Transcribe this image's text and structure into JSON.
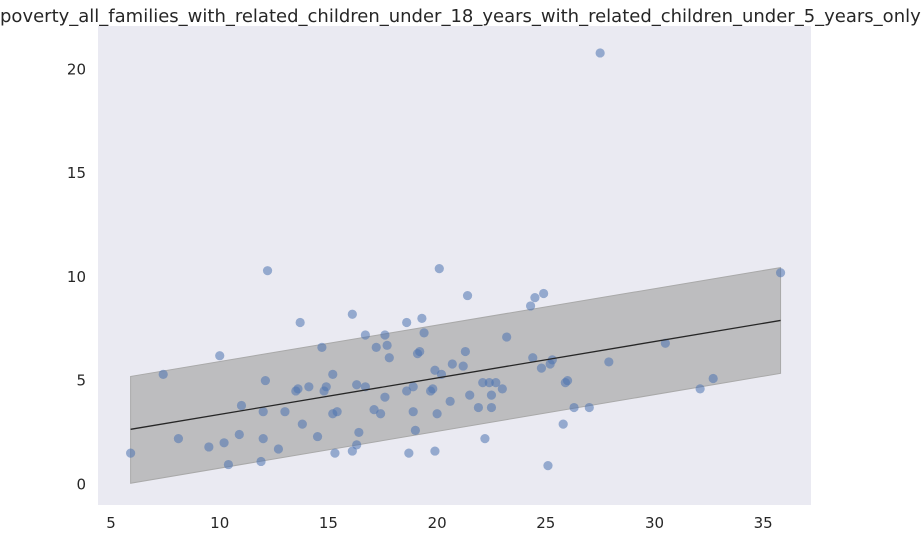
{
  "chart_data": {
    "type": "scatter",
    "title": "poverty_all_families_with_related_children_under_18_years_with_related_children_under_5_years_only",
    "xlabel": "",
    "ylabel": "",
    "xlim": [
      4.4,
      37.2
    ],
    "ylim": [
      -1.0,
      22.1
    ],
    "xticks": [
      5,
      10,
      15,
      20,
      25,
      30,
      35
    ],
    "yticks": [
      0,
      5,
      10,
      15,
      20
    ],
    "grid": false,
    "background": "#eaeaf2",
    "point_color": "#4c72b0",
    "band_color": "#a9a9a9",
    "line_color": "#262626",
    "regression": {
      "x": [
        5.9,
        35.8
      ],
      "y": [
        2.65,
        7.9
      ],
      "band_lower": [
        0.05,
        5.35
      ],
      "band_upper": [
        5.2,
        10.45
      ]
    },
    "points": [
      {
        "x": 5.9,
        "y": 1.5
      },
      {
        "x": 7.4,
        "y": 5.3
      },
      {
        "x": 8.1,
        "y": 2.2
      },
      {
        "x": 9.5,
        "y": 1.8
      },
      {
        "x": 10.0,
        "y": 6.2
      },
      {
        "x": 10.2,
        "y": 2.0
      },
      {
        "x": 10.4,
        "y": 0.95
      },
      {
        "x": 10.9,
        "y": 2.4
      },
      {
        "x": 11.0,
        "y": 3.8
      },
      {
        "x": 11.9,
        "y": 1.1
      },
      {
        "x": 12.0,
        "y": 2.2
      },
      {
        "x": 12.0,
        "y": 3.5
      },
      {
        "x": 12.1,
        "y": 5.0
      },
      {
        "x": 12.2,
        "y": 10.3
      },
      {
        "x": 12.7,
        "y": 1.7
      },
      {
        "x": 13.0,
        "y": 3.5
      },
      {
        "x": 13.5,
        "y": 4.5
      },
      {
        "x": 13.6,
        "y": 4.6
      },
      {
        "x": 13.7,
        "y": 7.8
      },
      {
        "x": 13.8,
        "y": 2.9
      },
      {
        "x": 14.1,
        "y": 4.7
      },
      {
        "x": 14.5,
        "y": 2.3
      },
      {
        "x": 14.7,
        "y": 6.6
      },
      {
        "x": 14.8,
        "y": 4.5
      },
      {
        "x": 14.9,
        "y": 4.7
      },
      {
        "x": 15.2,
        "y": 3.4
      },
      {
        "x": 15.2,
        "y": 5.3
      },
      {
        "x": 15.3,
        "y": 1.5
      },
      {
        "x": 15.4,
        "y": 3.5
      },
      {
        "x": 16.1,
        "y": 1.6
      },
      {
        "x": 16.1,
        "y": 8.2
      },
      {
        "x": 16.3,
        "y": 1.9
      },
      {
        "x": 16.3,
        "y": 4.8
      },
      {
        "x": 16.4,
        "y": 2.5
      },
      {
        "x": 16.7,
        "y": 4.7
      },
      {
        "x": 16.7,
        "y": 7.2
      },
      {
        "x": 17.1,
        "y": 3.6
      },
      {
        "x": 17.2,
        "y": 6.6
      },
      {
        "x": 17.4,
        "y": 3.4
      },
      {
        "x": 17.6,
        "y": 4.2
      },
      {
        "x": 17.6,
        "y": 7.2
      },
      {
        "x": 17.7,
        "y": 6.7
      },
      {
        "x": 17.8,
        "y": 6.1
      },
      {
        "x": 18.6,
        "y": 4.5
      },
      {
        "x": 18.6,
        "y": 7.8
      },
      {
        "x": 18.7,
        "y": 1.5
      },
      {
        "x": 18.9,
        "y": 4.7
      },
      {
        "x": 18.9,
        "y": 3.5
      },
      {
        "x": 19.0,
        "y": 2.6
      },
      {
        "x": 19.1,
        "y": 6.3
      },
      {
        "x": 19.2,
        "y": 6.4
      },
      {
        "x": 19.3,
        "y": 8.0
      },
      {
        "x": 19.4,
        "y": 7.3
      },
      {
        "x": 19.7,
        "y": 4.5
      },
      {
        "x": 19.8,
        "y": 4.6
      },
      {
        "x": 19.9,
        "y": 1.6
      },
      {
        "x": 19.9,
        "y": 5.5
      },
      {
        "x": 20.0,
        "y": 3.4
      },
      {
        "x": 20.1,
        "y": 10.4
      },
      {
        "x": 20.2,
        "y": 5.3
      },
      {
        "x": 20.6,
        "y": 4.0
      },
      {
        "x": 20.7,
        "y": 5.8
      },
      {
        "x": 21.2,
        "y": 5.7
      },
      {
        "x": 21.3,
        "y": 6.4
      },
      {
        "x": 21.4,
        "y": 9.1
      },
      {
        "x": 21.5,
        "y": 4.3
      },
      {
        "x": 21.9,
        "y": 3.7
      },
      {
        "x": 22.1,
        "y": 4.9
      },
      {
        "x": 22.2,
        "y": 2.2
      },
      {
        "x": 22.4,
        "y": 4.9
      },
      {
        "x": 22.5,
        "y": 4.3
      },
      {
        "x": 22.5,
        "y": 3.7
      },
      {
        "x": 22.7,
        "y": 4.9
      },
      {
        "x": 23.0,
        "y": 4.6
      },
      {
        "x": 23.2,
        "y": 7.1
      },
      {
        "x": 24.3,
        "y": 8.6
      },
      {
        "x": 24.4,
        "y": 6.1
      },
      {
        "x": 24.5,
        "y": 9.0
      },
      {
        "x": 24.8,
        "y": 5.6
      },
      {
        "x": 24.9,
        "y": 9.2
      },
      {
        "x": 25.1,
        "y": 0.9
      },
      {
        "x": 25.2,
        "y": 5.8
      },
      {
        "x": 25.3,
        "y": 6.0
      },
      {
        "x": 25.8,
        "y": 2.9
      },
      {
        "x": 25.9,
        "y": 4.9
      },
      {
        "x": 26.0,
        "y": 5.0
      },
      {
        "x": 26.3,
        "y": 3.7
      },
      {
        "x": 27.0,
        "y": 3.7
      },
      {
        "x": 27.5,
        "y": 20.8
      },
      {
        "x": 27.9,
        "y": 5.9
      },
      {
        "x": 30.5,
        "y": 6.8
      },
      {
        "x": 32.1,
        "y": 4.6
      },
      {
        "x": 32.7,
        "y": 5.1
      },
      {
        "x": 35.8,
        "y": 10.2
      }
    ]
  }
}
